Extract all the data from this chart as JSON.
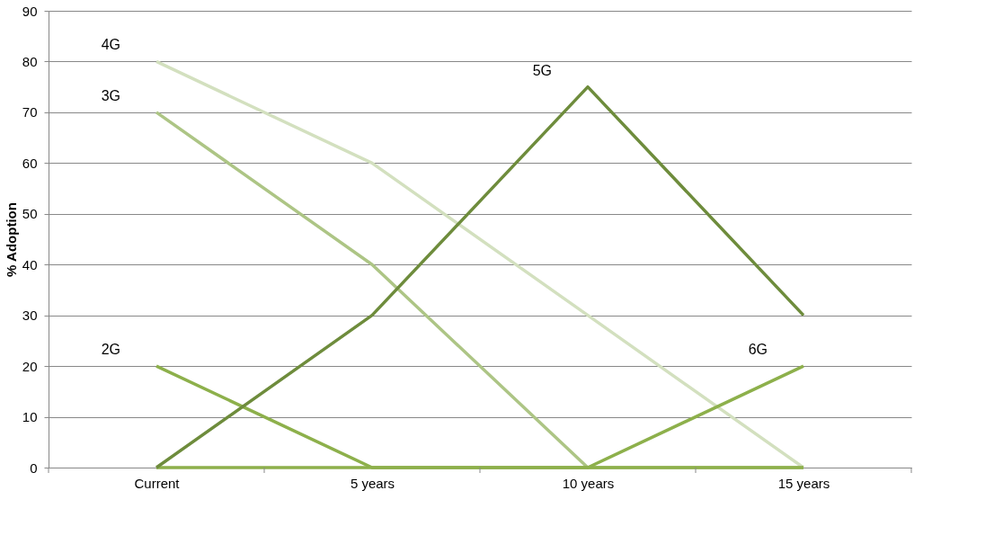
{
  "chart_data": {
    "type": "line",
    "ylabel": "% Adoption",
    "categories": [
      "Current",
      "5 years",
      "10 years",
      "15 years"
    ],
    "series": [
      {
        "name": "4G",
        "color": "#d3e0bf",
        "values": [
          80,
          60,
          30,
          0
        ]
      },
      {
        "name": "3G",
        "color": "#adc585",
        "values": [
          70,
          40,
          0,
          0
        ]
      },
      {
        "name": "2G",
        "color": "#8db04b",
        "values": [
          20,
          0,
          0,
          0
        ]
      },
      {
        "name": "6G",
        "color": "#8db04b",
        "values": [
          0,
          0,
          0,
          20
        ]
      },
      {
        "name": "5G",
        "color": "#6e8c3c",
        "values": [
          0,
          30,
          75,
          30
        ]
      }
    ],
    "ylim": [
      0,
      90
    ],
    "yticks": [
      0,
      10,
      20,
      30,
      40,
      50,
      60,
      70,
      80,
      90
    ],
    "grid": "y",
    "marker": "none",
    "line_style": "solid"
  }
}
